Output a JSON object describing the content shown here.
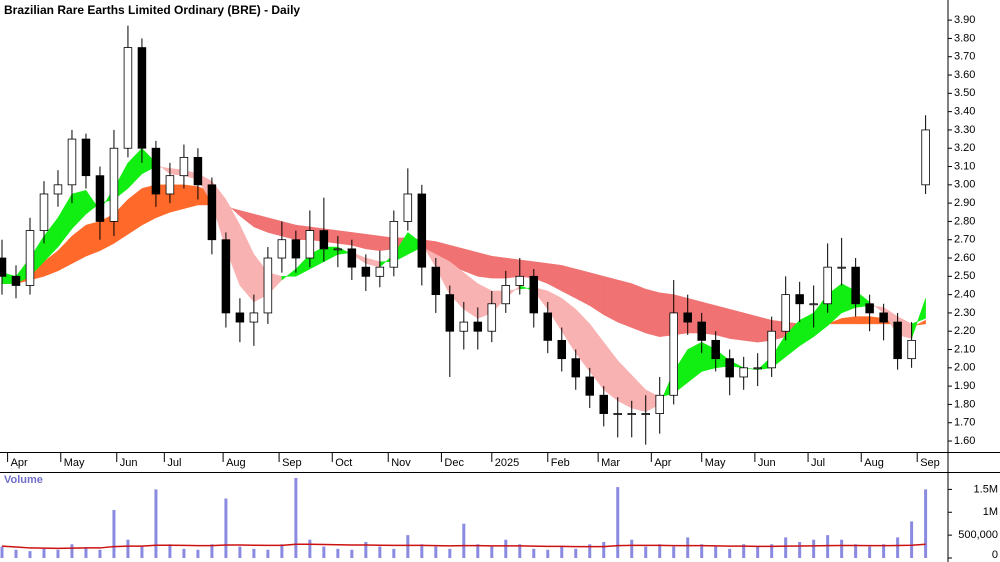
{
  "chart_data": [
    {
      "type": "candlestick",
      "title": "Brazilian Rare Earths Limited Ordinary (BRE) - Daily",
      "x": [
        0,
        5,
        10,
        15,
        20,
        25,
        30,
        35,
        40,
        45,
        50,
        55,
        60,
        65,
        70,
        75,
        80,
        85,
        90,
        95,
        100,
        105,
        110,
        115,
        120,
        125,
        130,
        135,
        140,
        145,
        150,
        155,
        160,
        165,
        170,
        175,
        180,
        185,
        190,
        195,
        200,
        205,
        210,
        215,
        220,
        225,
        230,
        235,
        240,
        245,
        250,
        255,
        260,
        265,
        270,
        275,
        280,
        285,
        290,
        295,
        300,
        305,
        310,
        315,
        320,
        325,
        330
      ],
      "open": [
        2.6,
        2.5,
        2.45,
        2.75,
        2.95,
        3.0,
        3.25,
        3.05,
        2.8,
        3.2,
        3.75,
        3.2,
        2.95,
        3.05,
        3.15,
        3.0,
        2.7,
        2.3,
        2.25,
        2.3,
        2.6,
        2.7,
        2.6,
        2.75,
        2.65,
        2.65,
        2.55,
        2.5,
        2.55,
        2.8,
        2.95,
        2.55,
        2.4,
        2.2,
        2.25,
        2.2,
        2.35,
        2.45,
        2.5,
        2.3,
        2.15,
        2.05,
        1.95,
        1.85,
        1.75,
        1.75,
        1.75,
        1.75,
        1.85,
        2.3,
        2.25,
        2.15,
        2.05,
        1.95,
        2.0,
        2.0,
        2.2,
        2.4,
        2.35,
        2.35,
        2.55,
        2.55,
        2.35,
        2.3,
        2.25,
        2.05,
        3.0
      ],
      "high": [
        2.7,
        2.56,
        2.82,
        3.02,
        3.08,
        3.3,
        3.28,
        3.1,
        3.3,
        3.87,
        3.8,
        3.24,
        3.12,
        3.22,
        3.2,
        3.04,
        2.74,
        2.38,
        2.4,
        2.66,
        2.8,
        2.75,
        2.86,
        2.93,
        2.72,
        2.7,
        2.62,
        2.64,
        2.86,
        3.09,
        3.0,
        2.6,
        2.45,
        2.36,
        2.33,
        2.42,
        2.53,
        2.6,
        2.54,
        2.36,
        2.22,
        2.1,
        2.0,
        1.9,
        1.84,
        1.82,
        1.85,
        1.95,
        2.48,
        2.4,
        2.3,
        2.2,
        2.1,
        2.06,
        2.08,
        2.28,
        2.5,
        2.47,
        2.45,
        2.68,
        2.71,
        2.6,
        2.4,
        2.35,
        2.3,
        2.25,
        3.38
      ],
      "low": [
        2.4,
        2.38,
        2.4,
        2.68,
        2.88,
        2.9,
        2.98,
        2.7,
        2.72,
        3.15,
        3.12,
        2.88,
        2.9,
        2.98,
        2.92,
        2.62,
        2.22,
        2.14,
        2.12,
        2.24,
        2.52,
        2.52,
        2.55,
        2.58,
        2.55,
        2.48,
        2.42,
        2.44,
        2.5,
        2.75,
        2.45,
        2.3,
        1.95,
        2.1,
        2.1,
        2.14,
        2.3,
        2.4,
        2.22,
        2.08,
        1.98,
        1.88,
        1.78,
        1.68,
        1.62,
        1.62,
        1.58,
        1.64,
        1.8,
        2.18,
        2.08,
        1.98,
        1.85,
        1.88,
        1.9,
        1.95,
        2.15,
        2.25,
        2.22,
        2.3,
        2.45,
        2.28,
        2.2,
        2.15,
        1.99,
        2.0,
        2.95
      ],
      "close": [
        2.5,
        2.45,
        2.75,
        2.95,
        3.0,
        3.25,
        3.05,
        2.8,
        3.2,
        3.75,
        3.2,
        2.95,
        3.05,
        3.15,
        3.0,
        2.7,
        2.3,
        2.25,
        2.3,
        2.6,
        2.7,
        2.6,
        2.75,
        2.65,
        2.65,
        2.55,
        2.5,
        2.55,
        2.8,
        2.95,
        2.55,
        2.4,
        2.2,
        2.25,
        2.2,
        2.35,
        2.45,
        2.5,
        2.3,
        2.15,
        2.05,
        1.95,
        1.85,
        1.75,
        1.75,
        1.75,
        1.75,
        1.85,
        2.3,
        2.25,
        2.15,
        2.05,
        1.95,
        2.0,
        2.0,
        2.2,
        2.4,
        2.35,
        2.35,
        2.55,
        2.55,
        2.35,
        2.3,
        2.25,
        2.05,
        2.15,
        3.3
      ],
      "colors": {
        "up": "#ffffff",
        "down": "#000000",
        "outline": "#000000"
      },
      "ribbons": [
        {
          "fast": [
            2.48,
            2.48,
            2.52,
            2.58,
            2.64,
            2.72,
            2.78,
            2.8,
            2.84,
            2.92,
            2.98,
            3.0,
            3.0,
            3.0,
            2.99,
            2.96,
            2.9,
            2.83,
            2.77,
            2.74,
            2.72,
            2.7,
            2.7,
            2.69,
            2.68,
            2.67,
            2.65,
            2.64,
            2.65,
            2.67,
            2.65,
            2.61,
            2.56,
            2.53,
            2.5,
            2.49,
            2.49,
            2.5,
            2.49,
            2.46,
            2.42,
            2.38,
            2.34,
            2.29,
            2.25,
            2.22,
            2.19,
            2.17,
            2.18,
            2.19,
            2.19,
            2.18,
            2.16,
            2.15,
            2.14,
            2.15,
            2.17,
            2.19,
            2.21,
            2.24,
            2.27,
            2.28,
            2.28,
            2.27,
            2.24,
            2.22,
            2.26
          ],
          "slow": [
            2.46,
            2.46,
            2.48,
            2.5,
            2.53,
            2.57,
            2.61,
            2.64,
            2.68,
            2.73,
            2.78,
            2.82,
            2.85,
            2.87,
            2.89,
            2.89,
            2.88,
            2.86,
            2.84,
            2.82,
            2.8,
            2.78,
            2.77,
            2.76,
            2.75,
            2.74,
            2.73,
            2.72,
            2.71,
            2.71,
            2.7,
            2.69,
            2.67,
            2.65,
            2.63,
            2.61,
            2.6,
            2.59,
            2.58,
            2.57,
            2.56,
            2.54,
            2.52,
            2.5,
            2.48,
            2.46,
            2.43,
            2.41,
            2.4,
            2.38,
            2.36,
            2.34,
            2.32,
            2.3,
            2.28,
            2.26,
            2.25,
            2.24,
            2.24,
            2.24,
            2.24,
            2.24,
            2.24,
            2.24,
            2.24,
            2.23,
            2.24
          ],
          "up_color": "#ff6a2a",
          "down_color": "#f07272"
        },
        {
          "fast": [
            2.52,
            2.5,
            2.6,
            2.72,
            2.82,
            2.95,
            2.97,
            2.86,
            2.98,
            3.12,
            3.2,
            3.12,
            3.06,
            3.05,
            3.03,
            2.9,
            2.65,
            2.45,
            2.36,
            2.4,
            2.48,
            2.54,
            2.62,
            2.66,
            2.66,
            2.62,
            2.57,
            2.55,
            2.62,
            2.74,
            2.68,
            2.55,
            2.4,
            2.32,
            2.27,
            2.3,
            2.38,
            2.45,
            2.42,
            2.32,
            2.2,
            2.08,
            1.98,
            1.88,
            1.82,
            1.78,
            1.76,
            1.8,
            1.98,
            2.1,
            2.14,
            2.1,
            2.04,
            2.0,
            1.99,
            2.06,
            2.18,
            2.26,
            2.3,
            2.4,
            2.46,
            2.42,
            2.36,
            2.3,
            2.18,
            2.16,
            2.38
          ],
          "slow": [
            2.46,
            2.46,
            2.5,
            2.58,
            2.66,
            2.76,
            2.84,
            2.9,
            2.92,
            2.98,
            3.06,
            3.1,
            3.09,
            3.08,
            3.06,
            3.02,
            2.92,
            2.78,
            2.62,
            2.52,
            2.5,
            2.5,
            2.54,
            2.58,
            2.62,
            2.63,
            2.6,
            2.58,
            2.58,
            2.62,
            2.66,
            2.62,
            2.58,
            2.52,
            2.46,
            2.42,
            2.42,
            2.43,
            2.44,
            2.42,
            2.38,
            2.32,
            2.24,
            2.14,
            2.04,
            1.96,
            1.88,
            1.84,
            1.86,
            1.92,
            1.98,
            2.0,
            2.01,
            2.0,
            1.99,
            2.0,
            2.06,
            2.12,
            2.17,
            2.23,
            2.3,
            2.33,
            2.34,
            2.33,
            2.28,
            2.24,
            2.27
          ],
          "up_color": "#11ee11",
          "down_color": "#f9b2b2"
        }
      ],
      "xlim": [
        0,
        338
      ],
      "xticks": [
        {
          "value": 2,
          "label": "Apr"
        },
        {
          "value": 21,
          "label": "May"
        },
        {
          "value": 41,
          "label": "Jun"
        },
        {
          "value": 58,
          "label": "Jul"
        },
        {
          "value": 79,
          "label": "Aug"
        },
        {
          "value": 99,
          "label": "Sep"
        },
        {
          "value": 118,
          "label": "Oct"
        },
        {
          "value": 138,
          "label": "Nov"
        },
        {
          "value": 157,
          "label": "Dec"
        },
        {
          "value": 175,
          "label": "2025"
        },
        {
          "value": 195,
          "label": "Feb"
        },
        {
          "value": 213,
          "label": "Mar"
        },
        {
          "value": 232,
          "label": "Apr"
        },
        {
          "value": 250,
          "label": "May"
        },
        {
          "value": 269,
          "label": "Jun"
        },
        {
          "value": 288,
          "label": "Jul"
        },
        {
          "value": 307,
          "label": "Aug"
        },
        {
          "value": 327,
          "label": "Sep"
        }
      ],
      "ylim": [
        1.54,
        4.01
      ],
      "yticks": [
        {
          "value": 1.6,
          "label": "1.60"
        },
        {
          "value": 1.7,
          "label": "1.70"
        },
        {
          "value": 1.8,
          "label": "1.80"
        },
        {
          "value": 1.9,
          "label": "1.90"
        },
        {
          "value": 2.0,
          "label": "2.00"
        },
        {
          "value": 2.1,
          "label": "2.10"
        },
        {
          "value": 2.2,
          "label": "2.20"
        },
        {
          "value": 2.3,
          "label": "2.30"
        },
        {
          "value": 2.4,
          "label": "2.40"
        },
        {
          "value": 2.5,
          "label": "2.50"
        },
        {
          "value": 2.6,
          "label": "2.60"
        },
        {
          "value": 2.7,
          "label": "2.70"
        },
        {
          "value": 2.8,
          "label": "2.80"
        },
        {
          "value": 2.9,
          "label": "2.90"
        },
        {
          "value": 3.0,
          "label": "3.00"
        },
        {
          "value": 3.1,
          "label": "3.10"
        },
        {
          "value": 3.2,
          "label": "3.20"
        },
        {
          "value": 3.3,
          "label": "3.30"
        },
        {
          "value": 3.4,
          "label": "3.40"
        },
        {
          "value": 3.5,
          "label": "3.50"
        },
        {
          "value": 3.6,
          "label": "3.60"
        },
        {
          "value": 3.7,
          "label": "3.70"
        },
        {
          "value": 3.8,
          "label": "3.80"
        },
        {
          "value": 3.9,
          "label": "3.90"
        }
      ]
    },
    {
      "type": "bar",
      "title": "Volume",
      "x": [
        0,
        5,
        10,
        15,
        20,
        25,
        30,
        35,
        40,
        45,
        50,
        55,
        60,
        65,
        70,
        75,
        80,
        85,
        90,
        95,
        100,
        105,
        110,
        115,
        120,
        125,
        130,
        135,
        140,
        145,
        150,
        155,
        160,
        165,
        170,
        175,
        180,
        185,
        190,
        195,
        200,
        205,
        210,
        215,
        220,
        225,
        230,
        235,
        240,
        245,
        250,
        255,
        260,
        265,
        270,
        275,
        280,
        285,
        290,
        295,
        300,
        305,
        310,
        315,
        320,
        325,
        330
      ],
      "values": [
        250000,
        180000,
        150000,
        200000,
        180000,
        300000,
        220000,
        180000,
        1050000,
        400000,
        250000,
        1500000,
        300000,
        200000,
        180000,
        300000,
        1300000,
        250000,
        200000,
        180000,
        300000,
        1750000,
        400000,
        250000,
        200000,
        180000,
        350000,
        250000,
        200000,
        500000,
        300000,
        250000,
        200000,
        750000,
        300000,
        250000,
        400000,
        300000,
        200000,
        180000,
        250000,
        200000,
        300000,
        350000,
        1550000,
        400000,
        250000,
        300000,
        250000,
        450000,
        300000,
        250000,
        200000,
        300000,
        250000,
        300000,
        450000,
        350000,
        400000,
        500000,
        400000,
        300000,
        250000,
        300000,
        450000,
        800000,
        1500000
      ],
      "color": "#8a8ae0",
      "ma": [
        260000,
        240000,
        220000,
        215000,
        210000,
        215000,
        220000,
        220000,
        250000,
        260000,
        260000,
        280000,
        280000,
        275000,
        270000,
        270000,
        285000,
        285000,
        280000,
        275000,
        275000,
        300000,
        300000,
        295000,
        290000,
        285000,
        285000,
        280000,
        275000,
        275000,
        275000,
        270000,
        265000,
        270000,
        270000,
        265000,
        265000,
        265000,
        260000,
        255000,
        255000,
        250000,
        250000,
        250000,
        270000,
        275000,
        275000,
        275000,
        270000,
        270000,
        270000,
        265000,
        260000,
        260000,
        255000,
        255000,
        260000,
        262000,
        265000,
        270000,
        272000,
        272000,
        270000,
        270000,
        272000,
        280000,
        300000
      ],
      "ma_color": "#cc1111",
      "xlim": [
        0,
        338
      ],
      "ylim": [
        0,
        1880000
      ],
      "yticks": [
        0,
        {
          "value": 500000,
          "label": "500,000"
        },
        {
          "value": 1000000,
          "label": "1M"
        },
        {
          "value": 1500000,
          "label": "1.5M"
        }
      ]
    }
  ]
}
